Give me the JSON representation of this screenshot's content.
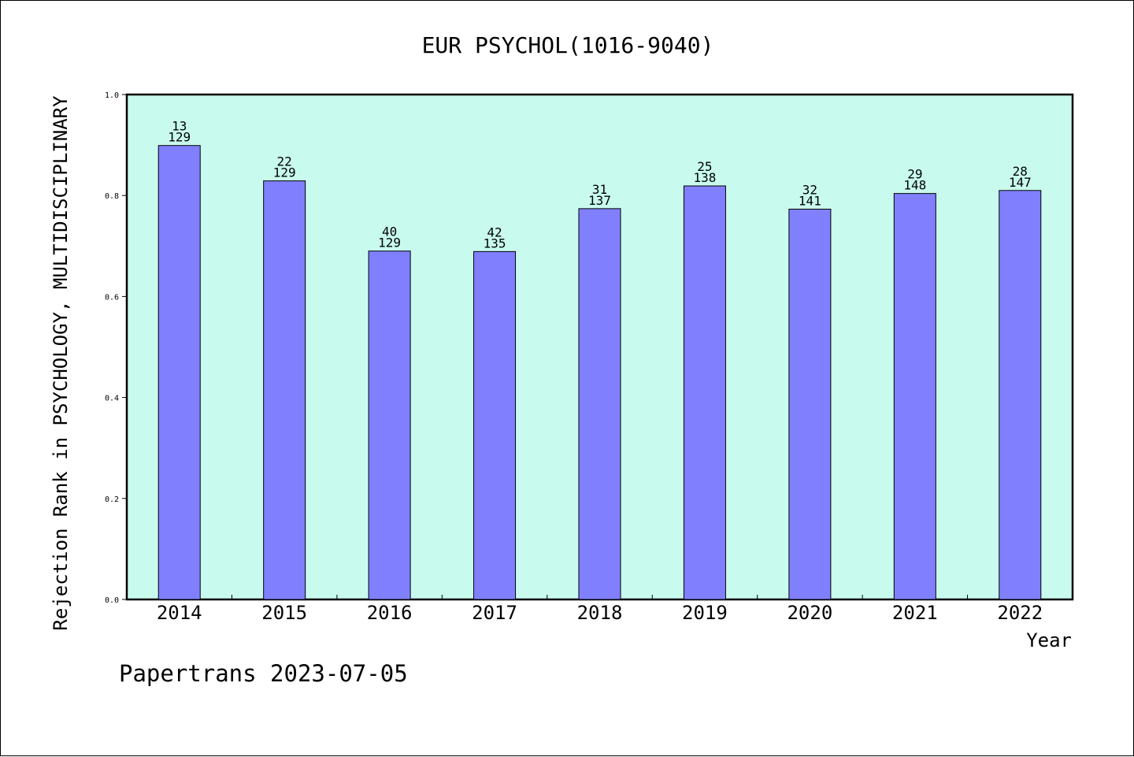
{
  "colors": {
    "plot_background": "#c8fbee",
    "bar_fill": "#8080ff",
    "bar_stroke": "#000000",
    "text": "#000000",
    "page_background": "#ffffff"
  },
  "footer": {
    "credit": "Papertrans 2023-07-05"
  },
  "chart_data": {
    "type": "bar",
    "title": "EUR PSYCHOL(1016-9040)",
    "xlabel": "Year",
    "ylabel": "Rejection Rank in PSYCHOLOGY, MULTIDISCIPLINARY",
    "ylim": [
      0,
      1.0
    ],
    "yticks": [
      "0.0",
      "0.2",
      "0.4",
      "0.6",
      "0.8",
      "1.0"
    ],
    "grid": false,
    "categories": [
      "2014",
      "2015",
      "2016",
      "2017",
      "2018",
      "2019",
      "2020",
      "2021",
      "2022"
    ],
    "values": [
      0.899,
      0.829,
      0.69,
      0.689,
      0.774,
      0.819,
      0.773,
      0.804,
      0.81
    ],
    "rank": [
      "13",
      "22",
      "40",
      "42",
      "31",
      "25",
      "32",
      "29",
      "28"
    ],
    "total": [
      "129",
      "129",
      "129",
      "135",
      "137",
      "138",
      "141",
      "148",
      "147"
    ]
  }
}
